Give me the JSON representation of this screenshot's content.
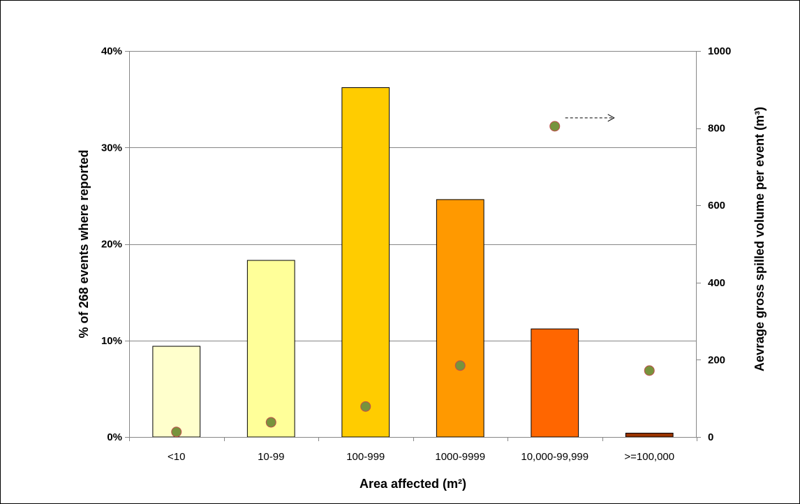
{
  "chart_data": {
    "type": "bar",
    "categories": [
      "<10",
      "10-99",
      "100-999",
      "1000-9999",
      "10,000-99,999",
      ">=100,000"
    ],
    "series": [
      {
        "type": "bar",
        "axis": "left",
        "values": [
          9.4,
          18.3,
          36.2,
          24.6,
          11.2,
          0.4
        ],
        "colors": [
          "#FFFFCC",
          "#FFFF99",
          "#FFCC00",
          "#FF9900",
          "#FF6600",
          "#993300"
        ]
      },
      {
        "type": "scatter",
        "axis": "right",
        "values": [
          13,
          38,
          79,
          185,
          805,
          172
        ],
        "marker_fill": "#77933C",
        "marker_edge": "#C0504D"
      }
    ],
    "annotation": "arrow pointing right beside the 10,000-99,999 point",
    "xlabel": "Area affected (m²)",
    "ylabel_left": "% of 268 events where reported",
    "ylabel_right": "Aevrage gross spilled volume per event (m³)",
    "ylim_left": [
      0,
      40
    ],
    "yticks_left": [
      "0%",
      "10%",
      "20%",
      "30%",
      "40%"
    ],
    "ylim_right": [
      0,
      1000
    ],
    "yticks_right": [
      "0",
      "200",
      "400",
      "600",
      "800",
      "1000"
    ],
    "grid": true
  }
}
